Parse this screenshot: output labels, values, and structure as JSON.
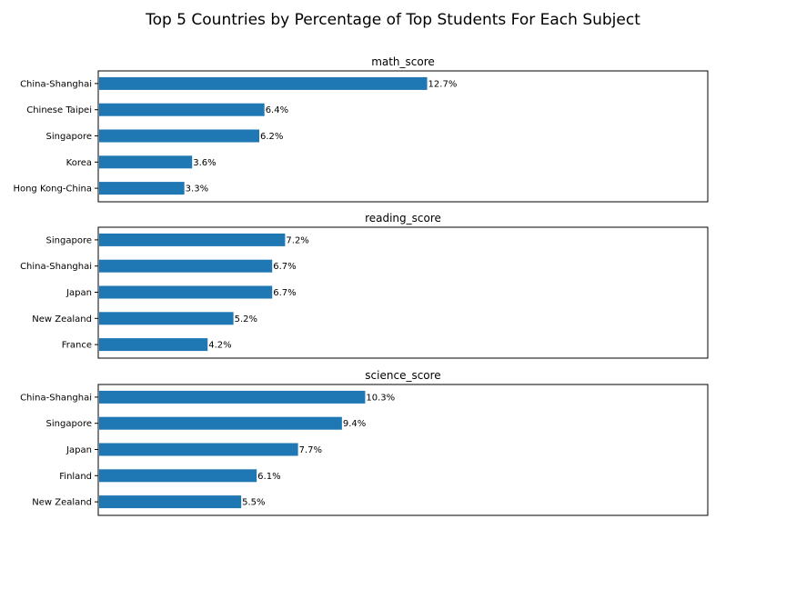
{
  "chart_data": {
    "type": "bar",
    "orientation": "horizontal",
    "title": "Top 5 Countries by Percentage of Top Students For Each Subject",
    "bar_color": "#1f77b4",
    "xlim": [
      0,
      23.6
    ],
    "x_axis_visible": false,
    "grid": false,
    "value_label_format": "{v}%",
    "subplots": [
      {
        "title": "math_score",
        "categories": [
          "China-Shanghai",
          "Chinese Taipei",
          "Singapore",
          "Korea",
          "Hong Kong-China"
        ],
        "values": [
          12.7,
          6.4,
          6.2,
          3.6,
          3.3
        ]
      },
      {
        "title": "reading_score",
        "categories": [
          "Singapore",
          "China-Shanghai",
          "Japan",
          "New Zealand",
          "France"
        ],
        "values": [
          7.2,
          6.7,
          6.7,
          5.2,
          4.2
        ]
      },
      {
        "title": "science_score",
        "categories": [
          "China-Shanghai",
          "Singapore",
          "Japan",
          "Finland",
          "New Zealand"
        ],
        "values": [
          10.3,
          9.4,
          7.7,
          6.1,
          5.5
        ]
      }
    ]
  }
}
